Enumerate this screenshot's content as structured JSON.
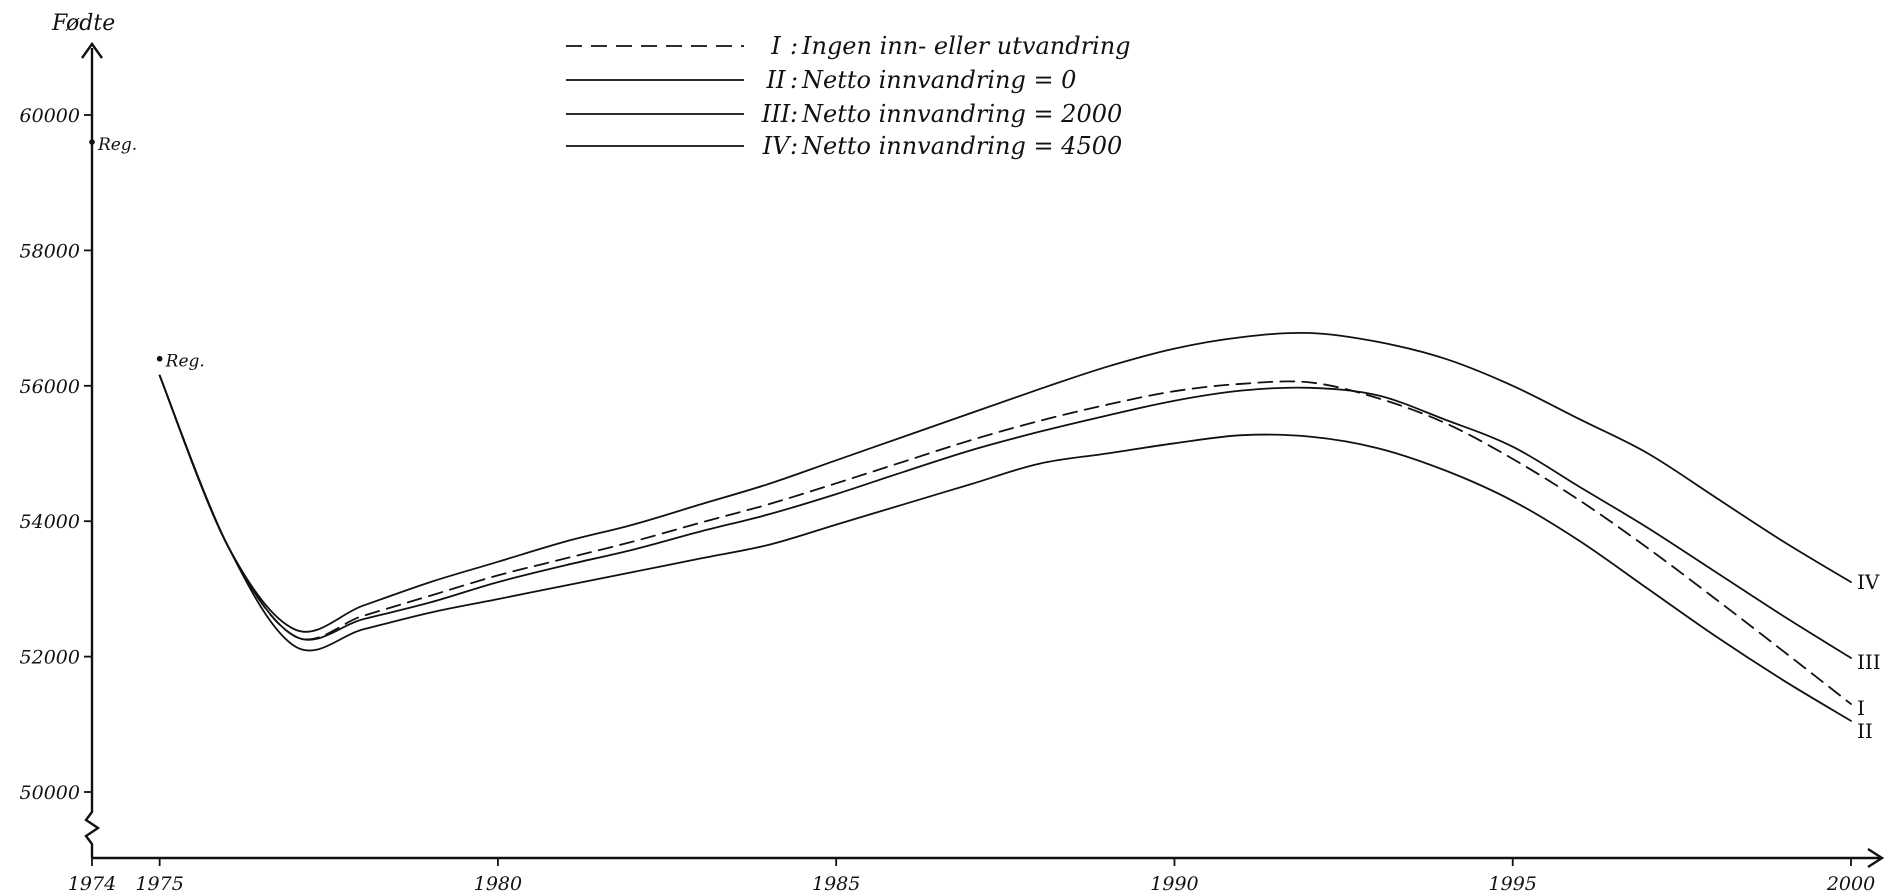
{
  "chart_data": {
    "type": "line",
    "title": "",
    "ylabel": "Fødte",
    "xlabel": "",
    "xlim": [
      1974,
      2000
    ],
    "ylim": [
      49000,
      61000
    ],
    "y_ticks": [
      50000,
      52000,
      54000,
      56000,
      58000,
      60000
    ],
    "y_tick_labels": [
      "50000",
      "52000",
      "54000",
      "56000",
      "58000",
      "60000"
    ],
    "x_ticks": [
      1974,
      1975,
      1980,
      1985,
      1990,
      1995,
      2000
    ],
    "x_tick_labels": [
      "1974",
      "1975",
      "1980",
      "1985",
      "1990",
      "1995",
      "2000"
    ],
    "grid": false,
    "legend_position": "top-center",
    "y_axis_break": true,
    "registered": [
      {
        "year": 1974,
        "value": 59600,
        "label": "Reg."
      },
      {
        "year": 1975,
        "value": 56400,
        "label": "Reg."
      }
    ],
    "series": [
      {
        "name": "Ingen inn- eller utvandring",
        "legend_numeral": "I",
        "end_label": "I",
        "style": "dashed",
        "x": [
          1975,
          1976,
          1977,
          1978,
          1979,
          1980,
          1981,
          1982,
          1983,
          1984,
          1985,
          1986,
          1987,
          1988,
          1989,
          1990,
          1991,
          1992,
          1993,
          1994,
          1995,
          1996,
          1997,
          1998,
          1999,
          2000
        ],
        "values": [
          56150,
          53650,
          52300,
          52600,
          52900,
          53200,
          53450,
          53700,
          53980,
          54250,
          54560,
          54880,
          55200,
          55480,
          55720,
          55920,
          56030,
          56050,
          55820,
          55450,
          54920,
          54300,
          53600,
          52850,
          52080,
          51300
        ]
      },
      {
        "name": "Netto innvandring = 0",
        "legend_numeral": "II",
        "end_label": "II",
        "style": "solid",
        "x": [
          1975,
          1976,
          1977,
          1978,
          1979,
          1980,
          1981,
          1982,
          1983,
          1984,
          1985,
          1986,
          1987,
          1988,
          1989,
          1990,
          1991,
          1992,
          1993,
          1994,
          1995,
          1996,
          1997,
          1998,
          1999,
          2000
        ],
        "values": [
          56150,
          53650,
          52150,
          52400,
          52650,
          52850,
          53050,
          53250,
          53450,
          53650,
          53950,
          54250,
          54550,
          54850,
          55000,
          55150,
          55270,
          55250,
          55080,
          54750,
          54300,
          53700,
          53000,
          52300,
          51650,
          51050
        ]
      },
      {
        "name": "Netto innvandring = 2000",
        "legend_numeral": "III",
        "end_label": "III",
        "style": "solid",
        "x": [
          1975,
          1976,
          1977,
          1978,
          1979,
          1980,
          1981,
          1982,
          1983,
          1984,
          1985,
          1986,
          1987,
          1988,
          1989,
          1990,
          1991,
          1992,
          1993,
          1994,
          1995,
          1996,
          1997,
          1998,
          1999,
          2000
        ],
        "values": [
          56150,
          53650,
          52300,
          52550,
          52800,
          53100,
          53350,
          53580,
          53850,
          54100,
          54400,
          54730,
          55050,
          55320,
          55560,
          55780,
          55930,
          55970,
          55860,
          55500,
          55100,
          54500,
          53900,
          53250,
          52600,
          51980
        ]
      },
      {
        "name": "Netto innvandring = 4500",
        "legend_numeral": "IV",
        "end_label": "IV",
        "style": "solid",
        "x": [
          1975,
          1976,
          1977,
          1978,
          1979,
          1980,
          1981,
          1982,
          1983,
          1984,
          1985,
          1986,
          1987,
          1988,
          1989,
          1990,
          1991,
          1992,
          1993,
          1994,
          1995,
          1996,
          1997,
          1998,
          1999,
          2000
        ],
        "values": [
          56150,
          53650,
          52400,
          52750,
          53100,
          53400,
          53700,
          53950,
          54250,
          54550,
          54900,
          55250,
          55600,
          55950,
          56280,
          56550,
          56720,
          56780,
          56650,
          56400,
          56000,
          55500,
          55000,
          54350,
          53700,
          53100
        ]
      }
    ]
  }
}
